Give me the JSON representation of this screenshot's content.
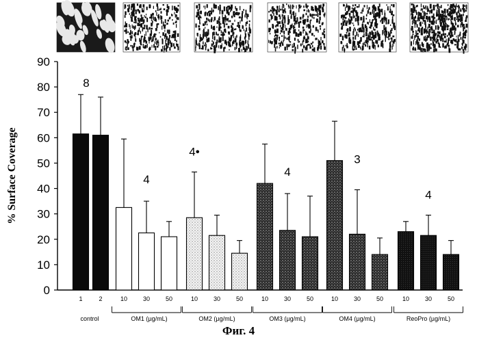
{
  "caption": "Фиг. 4",
  "colors": {
    "black": "#0a0a0a",
    "white": "#ffffff",
    "dark": "#3a3a3a",
    "light": "#d8d8d8",
    "mid": "#1e1e1e"
  },
  "chart_data": {
    "type": "bar",
    "ylabel": "% Surface Coverage",
    "ylim": [
      0,
      90
    ],
    "yticks": [
      0,
      10,
      20,
      30,
      40,
      50,
      60,
      70,
      80,
      90
    ],
    "grid": false,
    "bars": [
      {
        "label": "1",
        "group": "control",
        "value": 61.5,
        "error": 77,
        "fill": "black"
      },
      {
        "label": "2",
        "group": "control",
        "value": 61,
        "error": 76,
        "fill": "black"
      },
      {
        "label": "10",
        "group": "OM1 (µg/mL)",
        "value": 32.5,
        "error": 59.5,
        "fill": "white"
      },
      {
        "label": "30",
        "group": "OM1 (µg/mL)",
        "value": 22.5,
        "error": 35,
        "fill": "white"
      },
      {
        "label": "50",
        "group": "OM1 (µg/mL)",
        "value": 21,
        "error": 27,
        "fill": "white"
      },
      {
        "label": "10",
        "group": "OM2 (µg/mL)",
        "value": 28.5,
        "error": 46.5,
        "fill": "light"
      },
      {
        "label": "30",
        "group": "OM2 (µg/mL)",
        "value": 21.5,
        "error": 29.5,
        "fill": "light"
      },
      {
        "label": "50",
        "group": "OM2 (µg/mL)",
        "value": 14.5,
        "error": 19.5,
        "fill": "light"
      },
      {
        "label": "10",
        "group": "OM3 (µg/mL)",
        "value": 42,
        "error": 57.5,
        "fill": "dark"
      },
      {
        "label": "30",
        "group": "OM3 (µg/mL)",
        "value": 23.5,
        "error": 38,
        "fill": "dark"
      },
      {
        "label": "50",
        "group": "OM3 (µg/mL)",
        "value": 21,
        "error": 37,
        "fill": "dark"
      },
      {
        "label": "10",
        "group": "OM4 (µg/mL)",
        "value": 51,
        "error": 66.5,
        "fill": "dark"
      },
      {
        "label": "30",
        "group": "OM4 (µg/mL)",
        "value": 22,
        "error": 39.5,
        "fill": "dark"
      },
      {
        "label": "50",
        "group": "OM4 (µg/mL)",
        "value": 14,
        "error": 20.5,
        "fill": "dark"
      },
      {
        "label": "10",
        "group": "ReoPro (µg/mL)",
        "value": 23,
        "error": 27,
        "fill": "mid"
      },
      {
        "label": "30",
        "group": "ReoPro (µg/mL)",
        "value": 21.5,
        "error": 29.5,
        "fill": "mid"
      },
      {
        "label": "50",
        "group": "ReoPro (µg/mL)",
        "value": 14,
        "error": 19.5,
        "fill": "mid"
      }
    ],
    "groups": [
      "control",
      "OM1 (µg/mL)",
      "OM2 (µg/mL)",
      "OM3 (µg/mL)",
      "OM4 (µg/mL)",
      "ReoPro (µg/mL)"
    ],
    "annotations": [
      {
        "text": "8",
        "bar_index": 0,
        "y": 80
      },
      {
        "text": "4",
        "bar_index": 3,
        "y": 42
      },
      {
        "text": "4•",
        "bar_index": 5,
        "y": 53
      },
      {
        "text": "4",
        "bar_index": 9,
        "y": 45
      },
      {
        "text": "3",
        "bar_index": 12,
        "y": 50
      },
      {
        "text": "4",
        "bar_index": 15,
        "y": 36
      }
    ],
    "micrographs": [
      {
        "name": "control-micrograph",
        "tone": "dense"
      },
      {
        "name": "om1-micrograph",
        "tone": "sparse"
      },
      {
        "name": "om2-micrograph",
        "tone": "sparse"
      },
      {
        "name": "om3-micrograph",
        "tone": "sparse"
      },
      {
        "name": "om4-micrograph",
        "tone": "sparse"
      },
      {
        "name": "reopro-micrograph",
        "tone": "medium"
      }
    ]
  }
}
